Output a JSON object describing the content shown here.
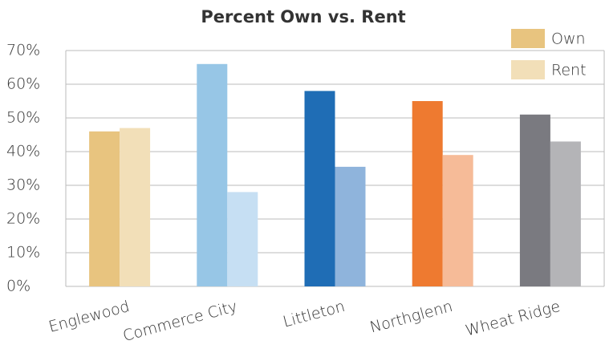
{
  "chart_data": {
    "type": "bar",
    "title": "Percent Own vs. Rent",
    "categories": [
      "Englewood",
      "Commerce City",
      "Littleton",
      "Northglenn",
      "Wheat Ridge"
    ],
    "series": [
      {
        "name": "Own",
        "color": "#e8c47f",
        "colors": [
          "#e8c47f",
          "#97c6e6",
          "#1f6db5",
          "#ee7a30",
          "#7a7a80"
        ],
        "values": [
          46,
          66,
          58,
          55,
          51
        ]
      },
      {
        "name": "Rent",
        "color": "#f2dfb8",
        "colors": [
          "#f2dfb8",
          "#c6dff3",
          "#8fb4dc",
          "#f6bb98",
          "#b4b4b7"
        ],
        "values": [
          47,
          28,
          35.5,
          39,
          43
        ]
      }
    ],
    "ylim": [
      0,
      70
    ],
    "yticks": [
      {
        "value": 0,
        "label": "0%"
      },
      {
        "value": 10,
        "label": "10%"
      },
      {
        "value": 20,
        "label": "20%"
      },
      {
        "value": 30,
        "label": "30%"
      },
      {
        "value": 40,
        "label": "40%"
      },
      {
        "value": 50,
        "label": "50%"
      },
      {
        "value": 60,
        "label": "60%"
      },
      {
        "value": 70,
        "label": "70%"
      }
    ],
    "grid": true,
    "legend": "top-right"
  }
}
